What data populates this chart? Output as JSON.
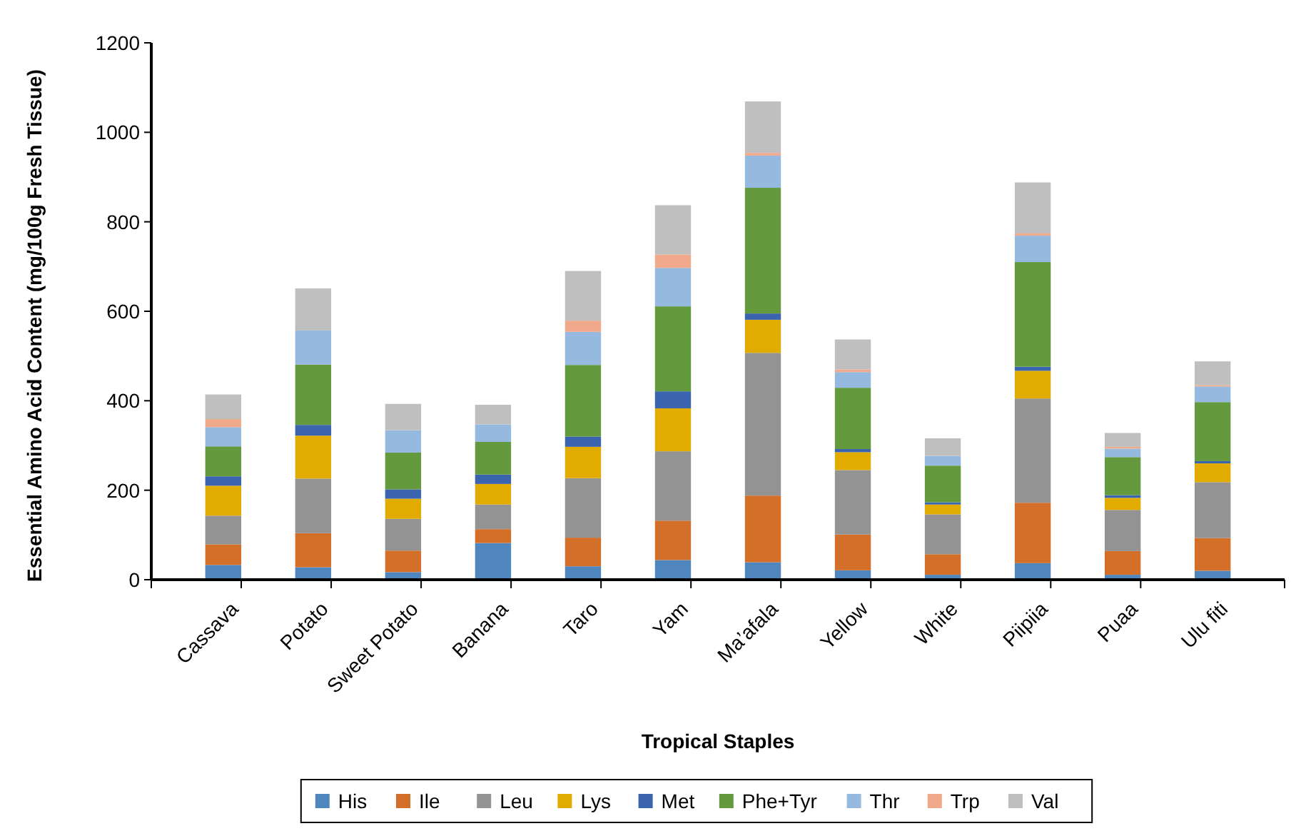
{
  "chart_data": {
    "type": "bar",
    "stacked": true,
    "xlabel": "Tropical Staples",
    "ylabel": "Essential Amino Acid Content (mg/100g Fresh Tissue)",
    "categories": [
      "Cassava",
      "Potato",
      "Sweet Potato",
      "Banana",
      "Taro",
      "Yam",
      "Ma’afala",
      "Yellow",
      "White",
      "Piipiia",
      "Puaa",
      "Ulu fiti"
    ],
    "ylim": [
      0,
      1200
    ],
    "yticks": [
      0,
      200,
      400,
      600,
      800,
      1000,
      1200
    ],
    "grid": false,
    "legend": "bottom",
    "series": [
      {
        "name": "His",
        "color": "#4e86bd",
        "values": [
          33,
          28,
          17,
          82,
          30,
          44,
          39,
          21,
          11,
          37,
          11,
          20
        ]
      },
      {
        "name": "Ile",
        "color": "#d46f2a",
        "values": [
          46,
          76,
          48,
          31,
          64,
          88,
          149,
          80,
          46,
          135,
          53,
          73
        ]
      },
      {
        "name": "Leu",
        "color": "#939393",
        "values": [
          64,
          122,
          71,
          55,
          133,
          155,
          319,
          144,
          89,
          233,
          92,
          125
        ]
      },
      {
        "name": "Lys",
        "color": "#e2ab00",
        "values": [
          67,
          96,
          45,
          46,
          70,
          96,
          74,
          40,
          22,
          62,
          27,
          42
        ]
      },
      {
        "name": "Met",
        "color": "#3b64ae",
        "values": [
          21,
          24,
          21,
          21,
          23,
          38,
          14,
          7,
          5,
          9,
          6,
          5
        ]
      },
      {
        "name": "Phe+Tyr",
        "color": "#64993d",
        "values": [
          67,
          135,
          82,
          73,
          160,
          190,
          281,
          137,
          82,
          234,
          85,
          132
        ]
      },
      {
        "name": "Thr",
        "color": "#96b9e0",
        "values": [
          43,
          76,
          50,
          39,
          74,
          86,
          72,
          35,
          22,
          59,
          19,
          35
        ]
      },
      {
        "name": "Trp",
        "color": "#f1a98b",
        "values": [
          18,
          0,
          0,
          0,
          25,
          30,
          6,
          6,
          0,
          5,
          4,
          3
        ]
      },
      {
        "name": "Val",
        "color": "#bfbfbf",
        "values": [
          55,
          94,
          59,
          44,
          111,
          110,
          115,
          67,
          39,
          114,
          31,
          53
        ]
      }
    ]
  }
}
